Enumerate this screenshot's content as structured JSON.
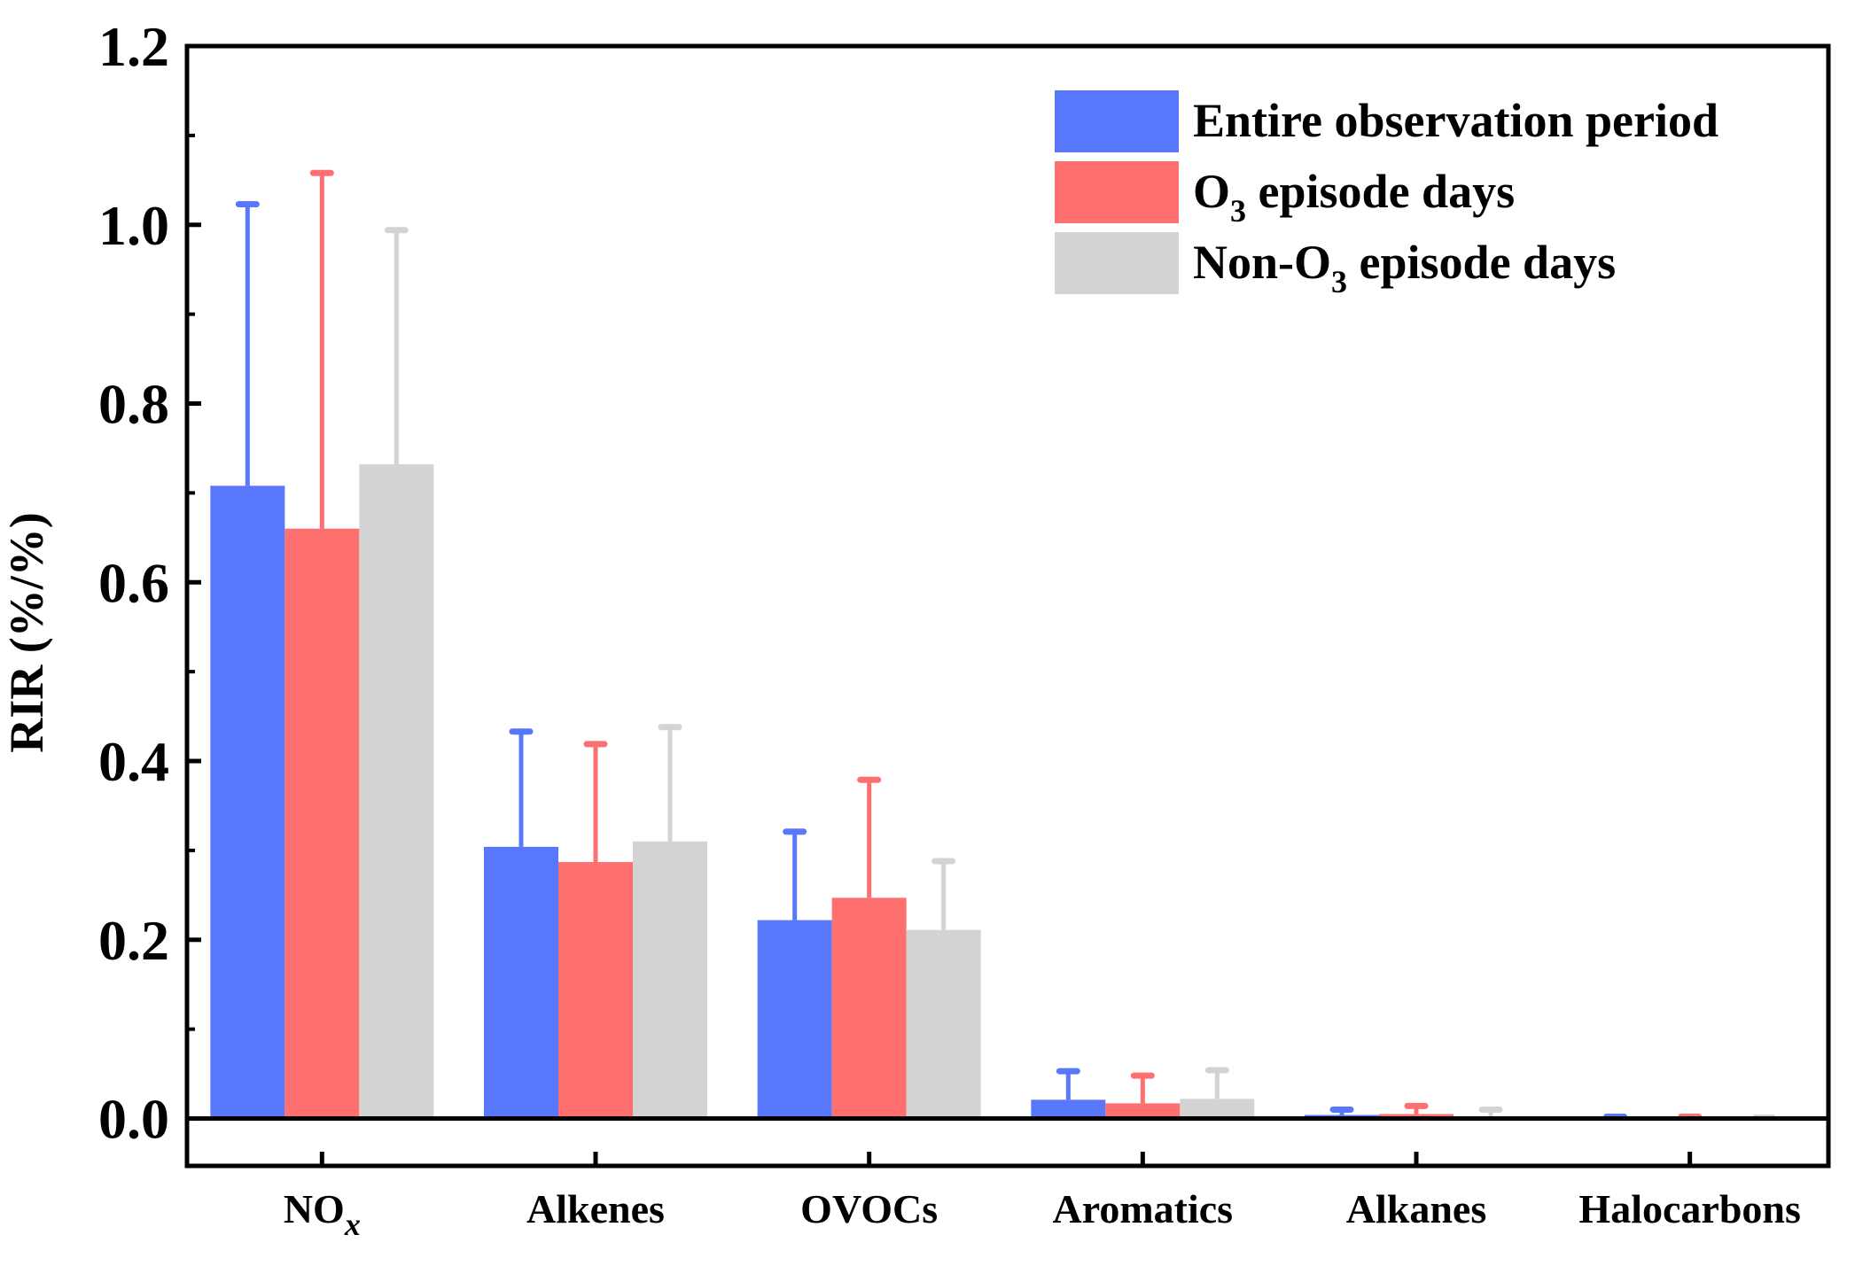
{
  "chart_data": {
    "type": "bar",
    "title": "",
    "xlabel": "",
    "ylabel": "RIR (%/%)",
    "ylim": [
      -0.053,
      1.2
    ],
    "yticks": [
      "0.0",
      "0.2",
      "0.4",
      "0.6",
      "0.8",
      "1.0",
      "1.2"
    ],
    "categories": [
      {
        "base": "NO",
        "sub": "x"
      },
      {
        "base": "Alkenes",
        "sub": ""
      },
      {
        "base": "OVOCs",
        "sub": ""
      },
      {
        "base": "Aromatics",
        "sub": ""
      },
      {
        "base": "Alkanes",
        "sub": ""
      },
      {
        "base": "Halocarbons",
        "sub": ""
      }
    ],
    "legend_position": "top-right",
    "series": [
      {
        "name": {
          "pre": "Entire observation period",
          "sub": "",
          "post": ""
        },
        "color": "#5877FB",
        "values": [
          0.708,
          0.304,
          0.222,
          0.021,
          0.004,
          0.001
        ],
        "error": [
          0.315,
          0.129,
          0.099,
          0.032,
          0.006,
          0.001
        ]
      },
      {
        "name": {
          "pre": "O",
          "sub": "3",
          "post": " episode days"
        },
        "color": "#FE7070",
        "values": [
          0.66,
          0.287,
          0.247,
          0.017,
          0.005,
          0.001
        ],
        "error": [
          0.398,
          0.132,
          0.132,
          0.031,
          0.009,
          0.001
        ]
      },
      {
        "name": {
          "pre": "Non-O",
          "sub": "3",
          "post": " episode days"
        },
        "color": "#D3D3D3",
        "values": [
          0.732,
          0.31,
          0.211,
          0.022,
          0.0,
          0.0
        ],
        "error": [
          0.262,
          0.128,
          0.077,
          0.032,
          0.01,
          0.001
        ]
      }
    ]
  }
}
